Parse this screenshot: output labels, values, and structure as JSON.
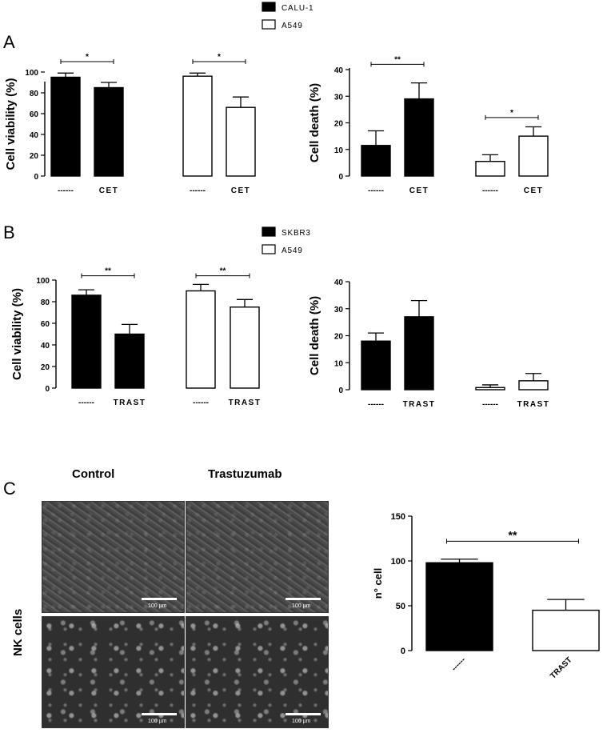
{
  "labels": {
    "a": "A",
    "b": "B",
    "c": "C"
  },
  "micrograph": {
    "col_control": "Control",
    "col_trastuzumab": "Trastuzumab",
    "row_nk": "NK cells",
    "scale": "100 µm"
  },
  "chart_data": [
    {
      "id": "A1",
      "type": "bar",
      "title": "",
      "xlabel": "",
      "ylabel": "Cell viability (%)",
      "ylim": [
        0,
        100
      ],
      "yticks": [
        0,
        20,
        40,
        60,
        80,
        100
      ],
      "categories": [
        "------",
        "CET",
        "------",
        "CET"
      ],
      "values": [
        95,
        85,
        96,
        66
      ],
      "errors": [
        4,
        5,
        3,
        10
      ],
      "fills": [
        "#000000",
        "#000000",
        "#ffffff",
        "#ffffff"
      ],
      "sig": [
        {
          "from": 0,
          "to": 1,
          "label": "*",
          "y": 110
        },
        {
          "from": 2,
          "to": 3,
          "label": "*",
          "y": 110
        }
      ],
      "legend": [
        "CALU-1",
        "A549"
      ]
    },
    {
      "id": "A2",
      "type": "bar",
      "title": "",
      "xlabel": "",
      "ylabel": "Cell death (%)",
      "ylim": [
        0,
        40
      ],
      "yticks": [
        0,
        10,
        20,
        30,
        40
      ],
      "categories": [
        "------",
        "CET",
        "------",
        "CET"
      ],
      "values": [
        11.5,
        29,
        5.5,
        15
      ],
      "errors": [
        5.5,
        6,
        2.5,
        3.5
      ],
      "fills": [
        "#000000",
        "#000000",
        "#ffffff",
        "#ffffff"
      ],
      "sig": [
        {
          "from": 0,
          "to": 1,
          "label": "**",
          "y": 42
        },
        {
          "from": 2,
          "to": 3,
          "label": "*",
          "y": 22
        }
      ]
    },
    {
      "id": "B1",
      "type": "bar",
      "title": "",
      "xlabel": "",
      "ylabel": "Cell viability (%)",
      "ylim": [
        0,
        100
      ],
      "yticks": [
        0,
        20,
        40,
        60,
        80,
        100
      ],
      "categories": [
        "------",
        "TRAST",
        "------",
        "TRAST"
      ],
      "values": [
        86,
        50,
        90,
        75
      ],
      "errors": [
        5,
        9,
        6,
        7
      ],
      "fills": [
        "#000000",
        "#000000",
        "#ffffff",
        "#ffffff"
      ],
      "sig": [
        {
          "from": 0,
          "to": 1,
          "label": "**",
          "y": 104
        },
        {
          "from": 2,
          "to": 3,
          "label": "**",
          "y": 104
        }
      ],
      "legend": [
        "SKBR3",
        "A549"
      ]
    },
    {
      "id": "B2",
      "type": "bar",
      "title": "",
      "xlabel": "",
      "ylabel": "Cell death (%)",
      "ylim": [
        0,
        40
      ],
      "yticks": [
        0,
        10,
        20,
        30,
        40
      ],
      "categories": [
        "------",
        "TRAST",
        "------",
        "TRAST"
      ],
      "values": [
        18,
        27,
        0.8,
        3.3
      ],
      "errors": [
        3,
        6,
        1,
        2.7
      ],
      "fills": [
        "#000000",
        "#000000",
        "#ffffff",
        "#ffffff"
      ],
      "sig": []
    },
    {
      "id": "C1",
      "type": "bar",
      "title": "",
      "xlabel": "",
      "ylabel": "n° cell",
      "ylim": [
        0,
        150
      ],
      "yticks": [
        0,
        50,
        100,
        150
      ],
      "categories": [
        "------",
        "TRAST"
      ],
      "values": [
        98,
        45
      ],
      "errors": [
        4,
        12
      ],
      "fills": [
        "#000000",
        "#ffffff"
      ],
      "sig": [
        {
          "from": 0,
          "to": 1,
          "label": "**",
          "y": 122
        }
      ]
    }
  ]
}
